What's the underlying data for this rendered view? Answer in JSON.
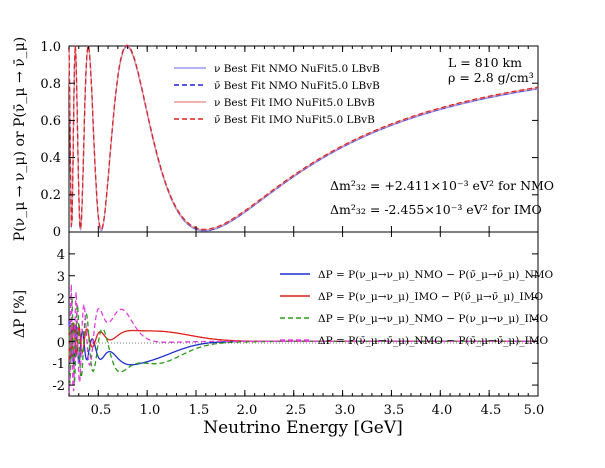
{
  "chart_data": [
    {
      "type": "line",
      "panel": "top",
      "ylabel": "P(ν_μ → ν_μ) or P(ν̄_μ → ν̄_μ)",
      "xlim": [
        0.2,
        5.0
      ],
      "ylim": [
        0,
        1.0
      ],
      "yticks": [
        "0",
        "0.2",
        "0.4",
        "0.6",
        "0.8",
        "1.0"
      ],
      "legend_placement": "top-center",
      "series": [
        {
          "name": "ν Best Fit NMO NuFit5.0 LBvB",
          "color": "#9999ee",
          "dash": "solid"
        },
        {
          "name": "ν̄ Best Fit NMO NuFit5.0 LBvB",
          "color": "#2222dd",
          "dash": "dashed"
        },
        {
          "name": "ν Best Fit IMO NuFit5.0 LBvB",
          "color": "#ee9999",
          "dash": "solid"
        },
        {
          "name": "ν̄ Best Fit IMO NuFit5.0 LBvB",
          "color": "#dd2222",
          "dash": "dashed"
        }
      ],
      "annotations": {
        "L": "L = 810 km",
        "rho": "ρ = 2.8 g/cm³",
        "dm_nmo": "Δm²₃₂ = +2.411×10⁻³ eV² for NMO",
        "dm_imo": "Δm²₃₂ = -2.455×10⁻³ eV² for IMO"
      },
      "sample": {
        "x": [
          0.25,
          0.3,
          0.35,
          0.4,
          0.45,
          0.5,
          0.6,
          0.7,
          0.8,
          1.0,
          1.2,
          1.4,
          1.6,
          1.8,
          2.0,
          2.5,
          3.0,
          3.5,
          4.0,
          4.5,
          5.0
        ],
        "y": [
          0.97,
          0.22,
          0.35,
          0.99,
          0.35,
          0.05,
          0.55,
          0.92,
          0.99,
          0.6,
          0.25,
          0.05,
          0.02,
          0.08,
          0.18,
          0.38,
          0.53,
          0.62,
          0.69,
          0.74,
          0.78
        ]
      }
    },
    {
      "type": "line",
      "panel": "bottom",
      "xlabel": "Neutrino Energy [GeV]",
      "ylabel": "ΔP [%]",
      "xlim": [
        0.2,
        5.0
      ],
      "ylim": [
        -2.5,
        5.0
      ],
      "xticks": [
        "0.5",
        "1.0",
        "1.5",
        "2.0",
        "2.5",
        "3.0",
        "3.5",
        "4.0",
        "4.5",
        "5.0"
      ],
      "yticks": [
        "-2",
        "-1",
        "0",
        "1",
        "2",
        "3",
        "4"
      ],
      "legend_placement": "top-right",
      "series": [
        {
          "name": "ΔP = P(ν_μ→ν_μ)_NMO − P(ν̄_μ→ν̄_μ)_NMO",
          "color": "#1f2fd0",
          "dash": "solid",
          "x": [
            0.3,
            0.4,
            0.5,
            0.6,
            0.7,
            0.8,
            0.9,
            1.0,
            1.2,
            1.4,
            1.6,
            2.0,
            3.0,
            4.0,
            5.0
          ],
          "y": [
            1.0,
            -1.8,
            -0.2,
            0.35,
            0.0,
            -0.6,
            -1.0,
            -0.95,
            -0.7,
            -0.45,
            -0.25,
            -0.1,
            0.0,
            0.0,
            0.0
          ]
        },
        {
          "name": "ΔP = P(ν_μ→ν_μ)_IMO − P(ν̄_μ→ν̄_μ)_IMO",
          "color": "#e0201a",
          "dash": "solid",
          "x": [
            0.3,
            0.4,
            0.5,
            0.6,
            0.7,
            0.8,
            0.9,
            1.0,
            1.2,
            1.4,
            1.6,
            2.0,
            3.0,
            4.0,
            5.0
          ],
          "y": [
            -0.8,
            1.2,
            0.3,
            -0.3,
            0.0,
            0.35,
            0.5,
            0.5,
            0.4,
            0.25,
            0.12,
            0.05,
            0.0,
            0.0,
            0.0
          ]
        },
        {
          "name": "ΔP = P(ν_μ→ν_μ)_NMO − P(ν_μ→ν_μ)_IMO",
          "color": "#2a9a1a",
          "dash": "dashed",
          "x": [
            0.3,
            0.4,
            0.5,
            0.6,
            0.7,
            0.8,
            0.9,
            1.0,
            1.2,
            1.4,
            1.6,
            2.0,
            3.0,
            4.0,
            5.0
          ],
          "y": [
            -1.5,
            2.2,
            -0.8,
            1.6,
            1.3,
            -0.3,
            -1.2,
            -1.3,
            -0.9,
            -0.5,
            -0.25,
            -0.1,
            0.0,
            0.0,
            0.0
          ]
        },
        {
          "name": "ΔP = P(ν̄_μ→ν̄_μ)_NMO − P(ν̄_μ→ν̄_μ)_IMO",
          "color": "#e040e0",
          "dash": "dashed",
          "x": [
            0.3,
            0.4,
            0.5,
            0.6,
            0.7,
            0.8,
            0.9,
            1.0,
            1.2,
            1.4,
            1.6,
            2.0,
            3.0,
            4.0,
            5.0
          ],
          "y": [
            2.8,
            -0.5,
            -0.3,
            1.8,
            1.6,
            0.7,
            0.2,
            0.0,
            0.0,
            0.0,
            0.0,
            0.0,
            0.0,
            0.0,
            0.0
          ]
        }
      ]
    }
  ]
}
